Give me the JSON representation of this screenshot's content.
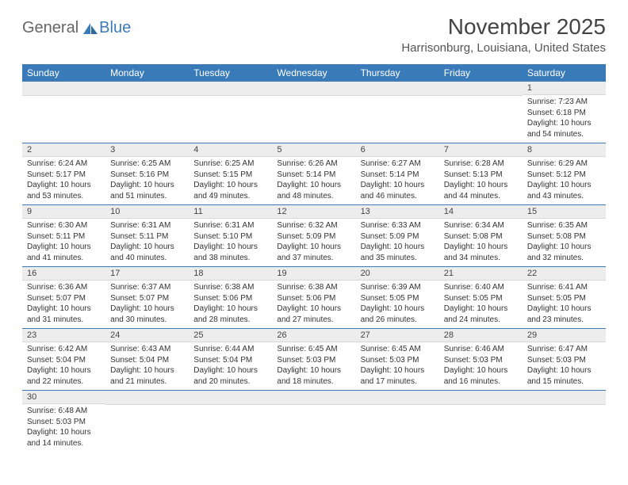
{
  "logo": {
    "text1": "General",
    "text2": "Blue"
  },
  "title": "November 2025",
  "location": "Harrisonburg, Louisiana, United States",
  "colors": {
    "header_bg": "#3a7ab8",
    "header_text": "#ffffff",
    "daynum_bg": "#ededed",
    "row_border": "#3a7ab8",
    "text": "#333333"
  },
  "dayHeaders": [
    "Sunday",
    "Monday",
    "Tuesday",
    "Wednesday",
    "Thursday",
    "Friday",
    "Saturday"
  ],
  "weeks": [
    [
      null,
      null,
      null,
      null,
      null,
      null,
      {
        "n": "1",
        "sunrise": "7:23 AM",
        "sunset": "6:18 PM",
        "daylight": "10 hours and 54 minutes."
      }
    ],
    [
      {
        "n": "2",
        "sunrise": "6:24 AM",
        "sunset": "5:17 PM",
        "daylight": "10 hours and 53 minutes."
      },
      {
        "n": "3",
        "sunrise": "6:25 AM",
        "sunset": "5:16 PM",
        "daylight": "10 hours and 51 minutes."
      },
      {
        "n": "4",
        "sunrise": "6:25 AM",
        "sunset": "5:15 PM",
        "daylight": "10 hours and 49 minutes."
      },
      {
        "n": "5",
        "sunrise": "6:26 AM",
        "sunset": "5:14 PM",
        "daylight": "10 hours and 48 minutes."
      },
      {
        "n": "6",
        "sunrise": "6:27 AM",
        "sunset": "5:14 PM",
        "daylight": "10 hours and 46 minutes."
      },
      {
        "n": "7",
        "sunrise": "6:28 AM",
        "sunset": "5:13 PM",
        "daylight": "10 hours and 44 minutes."
      },
      {
        "n": "8",
        "sunrise": "6:29 AM",
        "sunset": "5:12 PM",
        "daylight": "10 hours and 43 minutes."
      }
    ],
    [
      {
        "n": "9",
        "sunrise": "6:30 AM",
        "sunset": "5:11 PM",
        "daylight": "10 hours and 41 minutes."
      },
      {
        "n": "10",
        "sunrise": "6:31 AM",
        "sunset": "5:11 PM",
        "daylight": "10 hours and 40 minutes."
      },
      {
        "n": "11",
        "sunrise": "6:31 AM",
        "sunset": "5:10 PM",
        "daylight": "10 hours and 38 minutes."
      },
      {
        "n": "12",
        "sunrise": "6:32 AM",
        "sunset": "5:09 PM",
        "daylight": "10 hours and 37 minutes."
      },
      {
        "n": "13",
        "sunrise": "6:33 AM",
        "sunset": "5:09 PM",
        "daylight": "10 hours and 35 minutes."
      },
      {
        "n": "14",
        "sunrise": "6:34 AM",
        "sunset": "5:08 PM",
        "daylight": "10 hours and 34 minutes."
      },
      {
        "n": "15",
        "sunrise": "6:35 AM",
        "sunset": "5:08 PM",
        "daylight": "10 hours and 32 minutes."
      }
    ],
    [
      {
        "n": "16",
        "sunrise": "6:36 AM",
        "sunset": "5:07 PM",
        "daylight": "10 hours and 31 minutes."
      },
      {
        "n": "17",
        "sunrise": "6:37 AM",
        "sunset": "5:07 PM",
        "daylight": "10 hours and 30 minutes."
      },
      {
        "n": "18",
        "sunrise": "6:38 AM",
        "sunset": "5:06 PM",
        "daylight": "10 hours and 28 minutes."
      },
      {
        "n": "19",
        "sunrise": "6:38 AM",
        "sunset": "5:06 PM",
        "daylight": "10 hours and 27 minutes."
      },
      {
        "n": "20",
        "sunrise": "6:39 AM",
        "sunset": "5:05 PM",
        "daylight": "10 hours and 26 minutes."
      },
      {
        "n": "21",
        "sunrise": "6:40 AM",
        "sunset": "5:05 PM",
        "daylight": "10 hours and 24 minutes."
      },
      {
        "n": "22",
        "sunrise": "6:41 AM",
        "sunset": "5:05 PM",
        "daylight": "10 hours and 23 minutes."
      }
    ],
    [
      {
        "n": "23",
        "sunrise": "6:42 AM",
        "sunset": "5:04 PM",
        "daylight": "10 hours and 22 minutes."
      },
      {
        "n": "24",
        "sunrise": "6:43 AM",
        "sunset": "5:04 PM",
        "daylight": "10 hours and 21 minutes."
      },
      {
        "n": "25",
        "sunrise": "6:44 AM",
        "sunset": "5:04 PM",
        "daylight": "10 hours and 20 minutes."
      },
      {
        "n": "26",
        "sunrise": "6:45 AM",
        "sunset": "5:03 PM",
        "daylight": "10 hours and 18 minutes."
      },
      {
        "n": "27",
        "sunrise": "6:45 AM",
        "sunset": "5:03 PM",
        "daylight": "10 hours and 17 minutes."
      },
      {
        "n": "28",
        "sunrise": "6:46 AM",
        "sunset": "5:03 PM",
        "daylight": "10 hours and 16 minutes."
      },
      {
        "n": "29",
        "sunrise": "6:47 AM",
        "sunset": "5:03 PM",
        "daylight": "10 hours and 15 minutes."
      }
    ],
    [
      {
        "n": "30",
        "sunrise": "6:48 AM",
        "sunset": "5:03 PM",
        "daylight": "10 hours and 14 minutes."
      },
      null,
      null,
      null,
      null,
      null,
      null
    ]
  ],
  "labels": {
    "sunrise": "Sunrise:",
    "sunset": "Sunset:",
    "daylight": "Daylight:"
  }
}
